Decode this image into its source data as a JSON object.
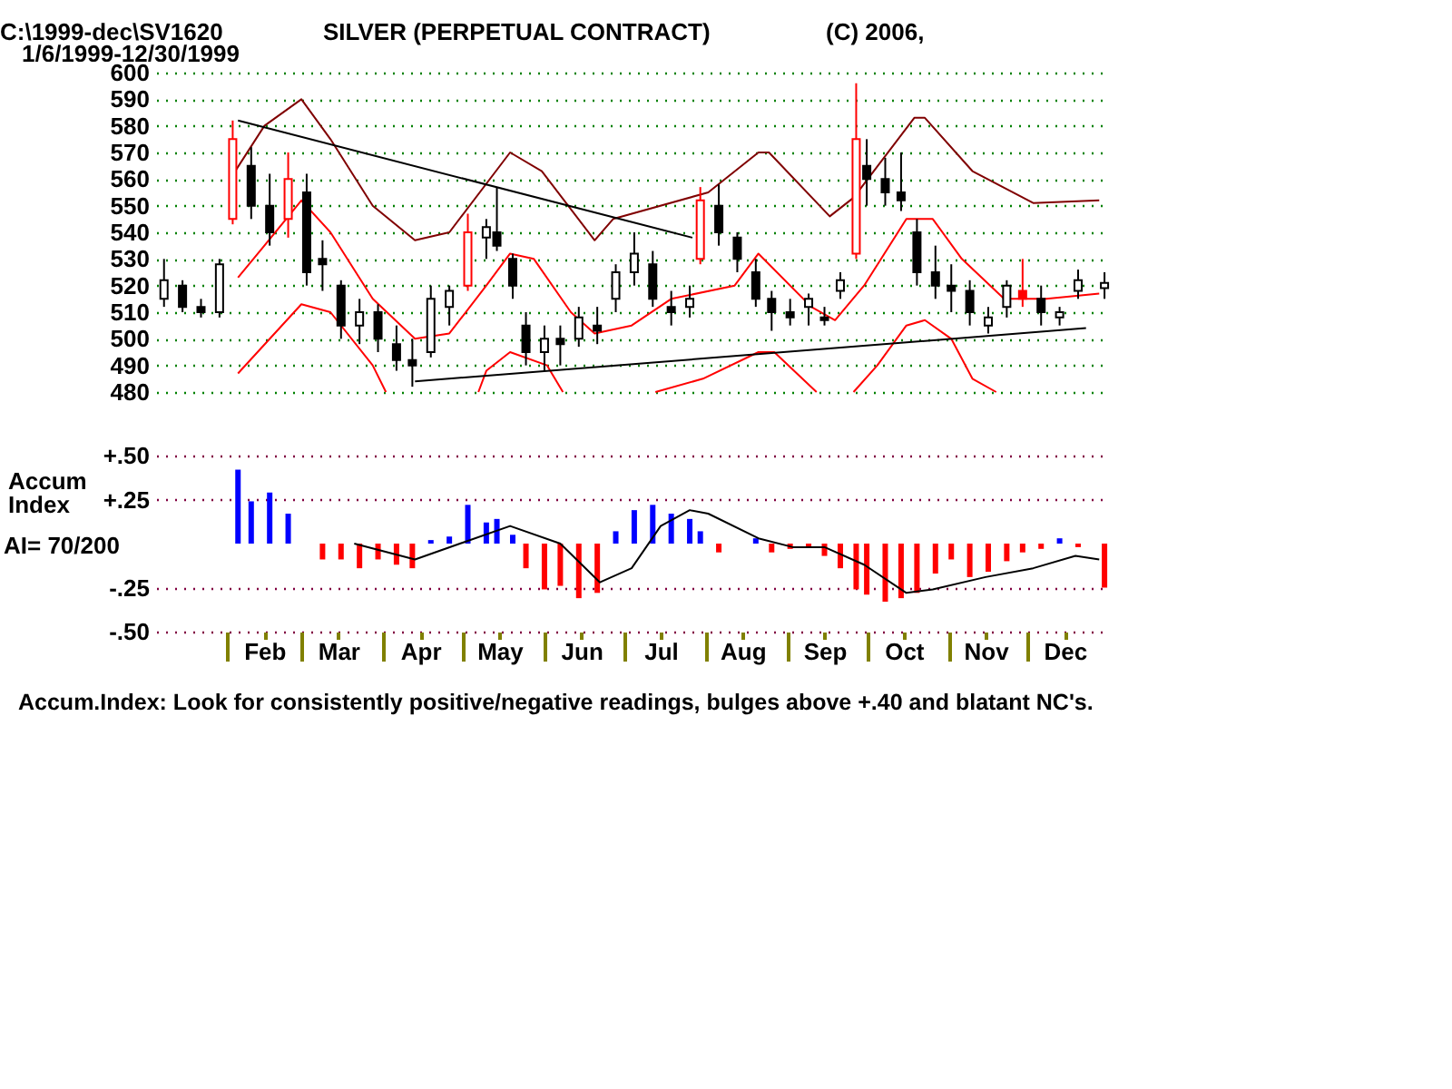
{
  "chart_data": [
    {
      "type": "candlestick",
      "title": "SILVER (PERPETUAL CONTRACT)",
      "subtitle": "1/6/1999-12/30/1999",
      "annotations": [
        "C:\\1999-dec\\SV1620",
        "(C) 2006,"
      ],
      "x": [
        "1999-01-08",
        "1999-01-15",
        "1999-01-22",
        "1999-01-29",
        "1999-02-03",
        "1999-02-10",
        "1999-02-17",
        "1999-02-24",
        "1999-03-03",
        "1999-03-09",
        "1999-03-16",
        "1999-03-23",
        "1999-03-30",
        "1999-04-06",
        "1999-04-12",
        "1999-04-19",
        "1999-04-26",
        "1999-05-03",
        "1999-05-10",
        "1999-05-14",
        "1999-05-20",
        "1999-05-25",
        "1999-06-01",
        "1999-06-07",
        "1999-06-14",
        "1999-06-21",
        "1999-06-28",
        "1999-07-05",
        "1999-07-12",
        "1999-07-19",
        "1999-07-26",
        "1999-07-30",
        "1999-08-06",
        "1999-08-13",
        "1999-08-20",
        "1999-08-26",
        "1999-09-02",
        "1999-09-09",
        "1999-09-15",
        "1999-09-21",
        "1999-09-27",
        "1999-10-01",
        "1999-10-08",
        "1999-10-14",
        "1999-10-20",
        "1999-10-27",
        "1999-11-02",
        "1999-11-09",
        "1999-11-16",
        "1999-11-23",
        "1999-11-29",
        "1999-12-06",
        "1999-12-13",
        "1999-12-20",
        "1999-12-30"
      ],
      "ohlc": [
        [
          515,
          530,
          512,
          522
        ],
        [
          520,
          522,
          510,
          512
        ],
        [
          512,
          515,
          508,
          510
        ],
        [
          510,
          530,
          508,
          528
        ],
        [
          545,
          582,
          543,
          575
        ],
        [
          565,
          572,
          545,
          550
        ],
        [
          550,
          562,
          535,
          540
        ],
        [
          545,
          570,
          538,
          560
        ],
        [
          555,
          562,
          520,
          525
        ],
        [
          530,
          537,
          518,
          528
        ],
        [
          520,
          522,
          500,
          505
        ],
        [
          505,
          515,
          498,
          510
        ],
        [
          510,
          513,
          495,
          500
        ],
        [
          498,
          505,
          488,
          492
        ],
        [
          492,
          500,
          482,
          490
        ],
        [
          495,
          520,
          493,
          515
        ],
        [
          512,
          520,
          505,
          518
        ],
        [
          520,
          547,
          518,
          540
        ],
        [
          538,
          545,
          530,
          542
        ],
        [
          540,
          557,
          533,
          535
        ],
        [
          530,
          532,
          515,
          520
        ],
        [
          505,
          510,
          490,
          495
        ],
        [
          495,
          505,
          488,
          500
        ],
        [
          500,
          505,
          490,
          498
        ],
        [
          500,
          512,
          497,
          508
        ],
        [
          505,
          512,
          498,
          503
        ],
        [
          515,
          528,
          510,
          525
        ],
        [
          525,
          540,
          520,
          532
        ],
        [
          528,
          533,
          512,
          515
        ],
        [
          512,
          518,
          505,
          510
        ],
        [
          512,
          520,
          508,
          515
        ],
        [
          530,
          557,
          528,
          552
        ],
        [
          550,
          558,
          535,
          540
        ],
        [
          538,
          540,
          525,
          530
        ],
        [
          525,
          530,
          512,
          515
        ],
        [
          515,
          518,
          503,
          510
        ],
        [
          510,
          515,
          505,
          508
        ],
        [
          512,
          517,
          505,
          515
        ],
        [
          508,
          512,
          505,
          507
        ],
        [
          518,
          525,
          515,
          522
        ],
        [
          532,
          596,
          530,
          575
        ],
        [
          565,
          575,
          550,
          560
        ],
        [
          560,
          568,
          550,
          555
        ],
        [
          555,
          570,
          548,
          552
        ],
        [
          540,
          545,
          520,
          525
        ],
        [
          525,
          535,
          515,
          520
        ],
        [
          520,
          528,
          510,
          518
        ],
        [
          518,
          522,
          505,
          510
        ],
        [
          505,
          512,
          502,
          508
        ],
        [
          512,
          522,
          508,
          520
        ],
        [
          518,
          530,
          512,
          515
        ],
        [
          515,
          520,
          505,
          510
        ],
        [
          508,
          512,
          505,
          510
        ],
        [
          518,
          526,
          515,
          522
        ],
        [
          519,
          525,
          515,
          521
        ]
      ],
      "colors": [
        "#000000",
        "#000000",
        "#000000",
        "#000000",
        "#ff0000",
        "#000000",
        "#000000",
        "#ff0000",
        "#000000",
        "#000000",
        "#000000",
        "#000000",
        "#000000",
        "#000000",
        "#000000",
        "#000000",
        "#000000",
        "#ff0000",
        "#000000",
        "#000000",
        "#000000",
        "#000000",
        "#000000",
        "#000000",
        "#000000",
        "#000000",
        "#000000",
        "#000000",
        "#000000",
        "#000000",
        "#000000",
        "#ff0000",
        "#000000",
        "#000000",
        "#000000",
        "#000000",
        "#000000",
        "#000000",
        "#000000",
        "#000000",
        "#ff0000",
        "#000000",
        "#000000",
        "#000000",
        "#000000",
        "#000000",
        "#000000",
        "#000000",
        "#000000",
        "#000000",
        "#ff0000",
        "#000000",
        "#000000",
        "#000000",
        "#000000"
      ],
      "series": [
        {
          "type": "line",
          "color": "#800000",
          "x": [
            "1999-02-02",
            "1999-02-15",
            "1999-03-01",
            "1999-03-12",
            "1999-03-28",
            "1999-04-13",
            "1999-04-26",
            "1999-05-19",
            "1999-05-31",
            "1999-06-20",
            "1999-06-27",
            "1999-08-02",
            "1999-08-21",
            "1999-08-25",
            "1999-09-17",
            "1999-09-26",
            "1999-10-19",
            "1999-10-23",
            "1999-11-10",
            "1999-12-03",
            "1999-12-28"
          ],
          "values": [
            560,
            580,
            590,
            575,
            550,
            537,
            540,
            570,
            563,
            537,
            545,
            555,
            570,
            570,
            546,
            553,
            583,
            583,
            563,
            551,
            552
          ]
        },
        {
          "type": "line",
          "color": "#ff0000",
          "x": [
            "1999-02-05",
            "1999-02-15",
            "1999-03-01",
            "1999-03-12",
            "1999-03-28",
            "1999-04-13",
            "1999-04-26",
            "1999-05-10",
            "1999-05-19",
            "1999-05-28",
            "1999-06-11",
            "1999-06-20",
            "1999-07-04",
            "1999-07-19",
            "1999-08-12",
            "1999-08-21",
            "1999-09-10",
            "1999-09-19",
            "1999-09-30",
            "1999-10-16",
            "1999-10-26",
            "1999-11-06",
            "1999-11-22",
            "1999-12-08",
            "1999-12-28"
          ],
          "values": [
            523,
            535,
            552,
            540,
            515,
            500,
            502,
            520,
            532,
            530,
            510,
            502,
            505,
            515,
            520,
            532,
            512,
            507,
            520,
            545,
            545,
            530,
            515,
            515,
            517
          ]
        },
        {
          "type": "line",
          "color": "#ff0000",
          "x": [
            "1999-02-05",
            "1999-03-01",
            "1999-03-12",
            "1999-03-28",
            "1999-04-02",
            "1999-04-26",
            "1999-05-07",
            "1999-05-10",
            "1999-05-19",
            "1999-06-02",
            "1999-06-08",
            "1999-06-28",
            "1999-07-13",
            "1999-07-31",
            "1999-08-21",
            "1999-08-27",
            "1999-09-12",
            "1999-09-20",
            "1999-09-26",
            "1999-10-05",
            "1999-10-16",
            "1999-10-23",
            "1999-11-02",
            "1999-11-10",
            "1999-11-19"
          ],
          "values": [
            487,
            513,
            510,
            490,
            480,
            null,
            480,
            488,
            495,
            490,
            480,
            null,
            480,
            485,
            495,
            495,
            480,
            null,
            480,
            490,
            505,
            507,
            500,
            485,
            480
          ]
        },
        {
          "type": "line",
          "color": "#000000",
          "x": [
            "1999-02-05",
            "1999-07-27"
          ],
          "values": [
            582,
            538
          ]
        },
        {
          "type": "line",
          "color": "#000000",
          "x": [
            "1999-04-13",
            "1999-12-23"
          ],
          "values": [
            484,
            504
          ]
        }
      ],
      "xlim": [
        "1999-01-05",
        "1999-12-31"
      ],
      "ylim": [
        480,
        600
      ],
      "yticks": [
        480,
        490,
        500,
        510,
        520,
        530,
        540,
        550,
        560,
        570,
        580,
        590,
        600
      ],
      "grid": "y",
      "tick_labels": "y"
    },
    {
      "type": "bar",
      "ylabel": "Accum Index",
      "annotations": [
        "AI= 70/200",
        "Accum.Index: Look for consistently positive/negative readings, bulges above +.40 and blatant NC's."
      ],
      "series": [
        {
          "type": "bar",
          "x": [
            "1999-02-05",
            "1999-02-10",
            "1999-02-17",
            "1999-02-24",
            "1999-03-09",
            "1999-03-16",
            "1999-03-23",
            "1999-03-30",
            "1999-04-06",
            "1999-04-12",
            "1999-04-19",
            "1999-04-26",
            "1999-05-03",
            "1999-05-10",
            "1999-05-14",
            "1999-05-20",
            "1999-05-25",
            "1999-06-01",
            "1999-06-07",
            "1999-06-14",
            "1999-06-21",
            "1999-06-28",
            "1999-07-05",
            "1999-07-12",
            "1999-07-19",
            "1999-07-26",
            "1999-07-30",
            "1999-08-06",
            "1999-08-20",
            "1999-08-26",
            "1999-09-02",
            "1999-09-09",
            "1999-09-15",
            "1999-09-21",
            "1999-09-27",
            "1999-10-01",
            "1999-10-08",
            "1999-10-14",
            "1999-10-20",
            "1999-10-27",
            "1999-11-02",
            "1999-11-09",
            "1999-11-16",
            "1999-11-23",
            "1999-11-29",
            "1999-12-06",
            "1999-12-13",
            "1999-12-20",
            "1999-12-30"
          ],
          "values": [
            0.42,
            0.24,
            0.29,
            0.17,
            -0.09,
            -0.09,
            -0.14,
            -0.09,
            -0.12,
            -0.14,
            0.02,
            0.04,
            0.22,
            0.12,
            0.14,
            0.05,
            -0.14,
            -0.26,
            -0.24,
            -0.31,
            -0.28,
            0.07,
            0.19,
            0.22,
            0.17,
            0.14,
            0.07,
            -0.05,
            0.03,
            -0.05,
            -0.03,
            -0.02,
            -0.07,
            -0.14,
            -0.26,
            -0.29,
            -0.33,
            -0.31,
            -0.28,
            -0.17,
            -0.09,
            -0.19,
            -0.16,
            -0.1,
            -0.05,
            -0.03,
            0.03,
            -0.02,
            -0.25
          ],
          "colors": [
            "#0000ff",
            "#0000ff",
            "#0000ff",
            "#0000ff",
            "#ff0000",
            "#ff0000",
            "#ff0000",
            "#ff0000",
            "#ff0000",
            "#ff0000",
            "#0000ff",
            "#0000ff",
            "#0000ff",
            "#0000ff",
            "#0000ff",
            "#0000ff",
            "#ff0000",
            "#ff0000",
            "#ff0000",
            "#ff0000",
            "#ff0000",
            "#0000ff",
            "#0000ff",
            "#0000ff",
            "#0000ff",
            "#0000ff",
            "#0000ff",
            "#ff0000",
            "#0000ff",
            "#ff0000",
            "#ff0000",
            "#ff0000",
            "#ff0000",
            "#ff0000",
            "#ff0000",
            "#ff0000",
            "#ff0000",
            "#ff0000",
            "#ff0000",
            "#ff0000",
            "#ff0000",
            "#ff0000",
            "#ff0000",
            "#ff0000",
            "#ff0000",
            "#ff0000",
            "#0000ff",
            "#ff0000",
            "#ff0000"
          ]
        },
        {
          "type": "line",
          "color": "#000000",
          "x": [
            "1999-03-21",
            "1999-04-13",
            "1999-05-19",
            "1999-06-07",
            "1999-06-22",
            "1999-07-04",
            "1999-07-15",
            "1999-07-26",
            "1999-08-02",
            "1999-08-21",
            "1999-09-03",
            "1999-09-15",
            "1999-09-30",
            "1999-10-16",
            "1999-10-26",
            "1999-11-15",
            "1999-12-03",
            "1999-12-19",
            "1999-12-28"
          ],
          "values": [
            0,
            -0.09,
            0.1,
            0,
            -0.22,
            -0.14,
            0.1,
            0.19,
            0.17,
            0.03,
            -0.02,
            -0.02,
            -0.12,
            -0.28,
            -0.26,
            -0.19,
            -0.14,
            -0.07,
            -0.09
          ]
        }
      ],
      "xlim": [
        "1999-01-05",
        "1999-12-31"
      ],
      "xticks": [
        {
          "value": "1999-02-01",
          "label": null
        },
        {
          "value": "1999-02-15",
          "label": "Feb"
        },
        {
          "value": "1999-03-01",
          "label": null
        },
        {
          "value": "1999-03-15",
          "label": "Mar"
        },
        {
          "value": "1999-04-01",
          "label": null
        },
        {
          "value": "1999-04-15",
          "label": "Apr"
        },
        {
          "value": "1999-05-01",
          "label": null
        },
        {
          "value": "1999-05-15",
          "label": "May"
        },
        {
          "value": "1999-06-01",
          "label": null
        },
        {
          "value": "1999-06-15",
          "label": "Jun"
        },
        {
          "value": "1999-07-01",
          "label": null
        },
        {
          "value": "1999-07-15",
          "label": "Jul"
        },
        {
          "value": "1999-08-01",
          "label": null
        },
        {
          "value": "1999-08-15",
          "label": "Aug"
        },
        {
          "value": "1999-09-01",
          "label": null
        },
        {
          "value": "1999-09-15",
          "label": "Sep"
        },
        {
          "value": "1999-10-01",
          "label": null
        },
        {
          "value": "1999-10-15",
          "label": "Oct"
        },
        {
          "value": "1999-11-01",
          "label": null
        },
        {
          "value": "1999-11-15",
          "label": "Nov"
        },
        {
          "value": "1999-12-01",
          "label": null
        },
        {
          "value": "1999-12-15",
          "label": "Dec"
        }
      ],
      "ylim": [
        -0.5,
        0.5
      ],
      "yticks": [
        {
          "value": 0.5,
          "label": "+.50"
        },
        {
          "value": 0.25,
          "label": "+.25"
        },
        {
          "value": -0.25,
          "label": "-.25"
        },
        {
          "value": -0.5,
          "label": "-.50"
        }
      ],
      "grid": "y"
    }
  ]
}
